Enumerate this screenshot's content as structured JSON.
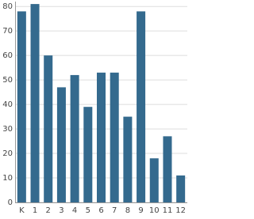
{
  "chart_data": {
    "type": "bar",
    "categories": [
      "K",
      "1",
      "2",
      "3",
      "4",
      "5",
      "6",
      "7",
      "8",
      "9",
      "10",
      "11",
      "12"
    ],
    "values": [
      78,
      81,
      60,
      47,
      52,
      39,
      53,
      53,
      35,
      78,
      18,
      27,
      11
    ],
    "color": "#346a8e",
    "ylim": [
      0,
      82
    ],
    "yticks": [
      0,
      10,
      20,
      30,
      40,
      50,
      60,
      70,
      80
    ],
    "grid": true
  }
}
